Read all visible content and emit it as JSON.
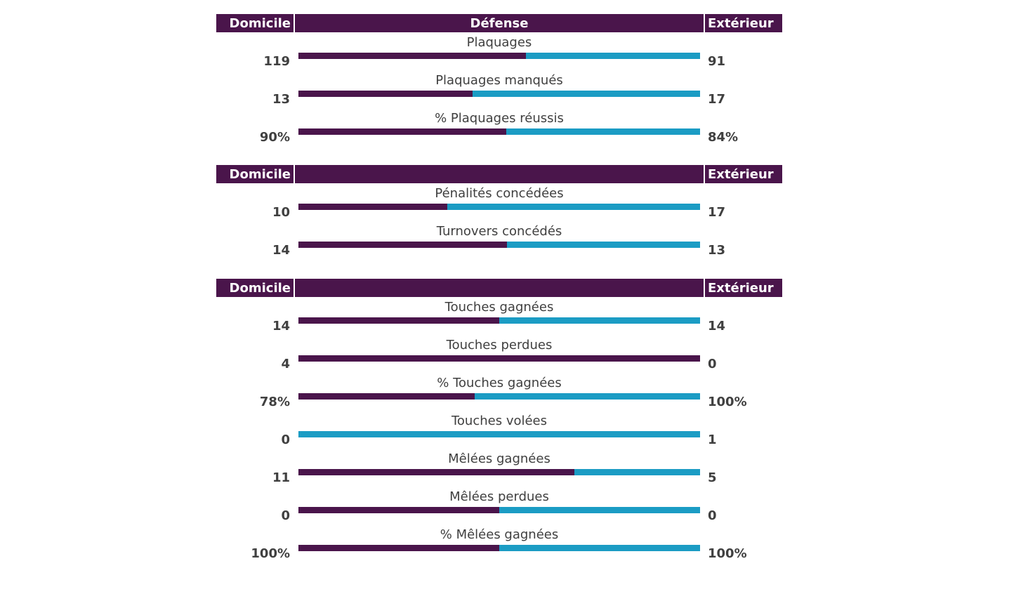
{
  "chart_data": {
    "type": "bar",
    "series": [
      {
        "name": "Domicile",
        "color": "#4a154b"
      },
      {
        "name": "Extérieur",
        "color": "#1b9cc4"
      }
    ],
    "sections": [
      {
        "home_label": "Domicile",
        "title": "Défense",
        "away_label": "Extérieur",
        "rows": [
          {
            "label": "Plaquages",
            "home": 119,
            "away": 91,
            "home_text": "119",
            "away_text": "91"
          },
          {
            "label": "Plaquages manqués",
            "home": 13,
            "away": 17,
            "home_text": "13",
            "away_text": "17"
          },
          {
            "label": "% Plaquages réussis",
            "home": 90,
            "away": 84,
            "home_text": "90%",
            "away_text": "84%"
          }
        ]
      },
      {
        "home_label": "Domicile",
        "title": "",
        "away_label": "Extérieur",
        "rows": [
          {
            "label": "Pénalités concédées",
            "home": 10,
            "away": 17,
            "home_text": "10",
            "away_text": "17"
          },
          {
            "label": "Turnovers concédés",
            "home": 14,
            "away": 13,
            "home_text": "14",
            "away_text": "13"
          }
        ]
      },
      {
        "home_label": "Domicile",
        "title": "",
        "away_label": "Extérieur",
        "rows": [
          {
            "label": "Touches gagnées",
            "home": 14,
            "away": 14,
            "home_text": "14",
            "away_text": "14"
          },
          {
            "label": "Touches perdues",
            "home": 4,
            "away": 0,
            "home_text": "4",
            "away_text": "0"
          },
          {
            "label": "% Touches gagnées",
            "home": 78,
            "away": 100,
            "home_text": "78%",
            "away_text": "100%"
          },
          {
            "label": "Touches volées",
            "home": 0,
            "away": 1,
            "home_text": "0",
            "away_text": "1"
          },
          {
            "label": "Mêlées gagnées",
            "home": 11,
            "away": 5,
            "home_text": "11",
            "away_text": "5"
          },
          {
            "label": "Mêlées perdues",
            "home": 0,
            "away": 0,
            "home_text": "0",
            "away_text": "0"
          },
          {
            "label": "% Mêlées gagnées",
            "home": 100,
            "away": 100,
            "home_text": "100%",
            "away_text": "100%"
          }
        ]
      }
    ]
  }
}
